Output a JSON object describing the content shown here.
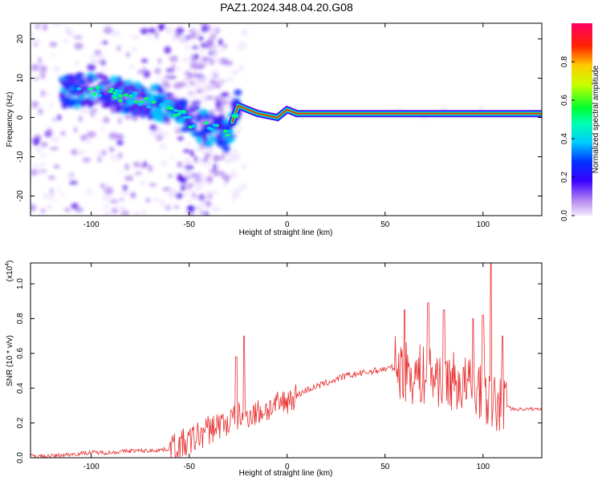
{
  "title": "PAZ1.2024.348.04.20.G08",
  "colors": {
    "snr_line": "#e83030",
    "frame": "#000000"
  },
  "chart_data": [
    {
      "type": "heatmap",
      "title": "PAZ1.2024.348.04.20.G08",
      "xlabel": "Height of straight line (km)",
      "ylabel": "Frequency (Hz)",
      "xlim": [
        -131,
        130
      ],
      "ylim": [
        -25,
        24
      ],
      "xticks": [
        -100,
        -50,
        0,
        50,
        100
      ],
      "yticks": [
        -20,
        -10,
        0,
        10,
        20
      ],
      "colorbar": {
        "label": "Normalized spectral amplitude",
        "range": [
          0.0,
          1.0
        ],
        "ticks": [
          0.0,
          0.2,
          0.4,
          0.6,
          0.8
        ],
        "colormap": "rainbow (white-violet-blue-cyan-green-yellow-red-magenta)"
      },
      "ridge": [
        {
          "x": -100,
          "freq": 7
        },
        {
          "x": -80,
          "freq": 5
        },
        {
          "x": -60,
          "freq": 3
        },
        {
          "x": -50,
          "freq": -1
        },
        {
          "x": -40,
          "freq": -3
        },
        {
          "x": -30,
          "freq": -4
        },
        {
          "x": -25,
          "freq": 3
        },
        {
          "x": -15,
          "freq": 1
        },
        {
          "x": -5,
          "freq": 0
        },
        {
          "x": 0,
          "freq": 2
        },
        {
          "x": 5,
          "freq": 1
        },
        {
          "x": 50,
          "freq": 1
        },
        {
          "x": 100,
          "freq": 1
        },
        {
          "x": 130,
          "freq": 1
        }
      ]
    },
    {
      "type": "line",
      "xlabel": "Height of straight line (km)",
      "ylabel": "SNR (10 * v/v)",
      "scale_label": "(x10",
      "scale_exponent": "4",
      "xlim": [
        -131,
        130
      ],
      "ylim": [
        0.0,
        1.12
      ],
      "xticks": [
        -100,
        -50,
        0,
        50,
        100
      ],
      "yticks": [
        0.0,
        0.2,
        0.4,
        0.6,
        0.8,
        1.0
      ],
      "series": [
        {
          "x": [
            -131,
            -120,
            -110,
            -100,
            -90,
            -80,
            -70,
            -60,
            -55,
            -50,
            -45,
            -40,
            -35,
            -30,
            -25,
            -20,
            -15,
            -10,
            -5,
            0,
            5,
            10,
            15,
            20,
            25,
            30,
            35,
            40,
            45,
            50,
            55,
            60,
            65,
            70,
            75,
            80,
            85,
            90,
            95,
            100,
            105,
            110,
            115,
            120,
            125,
            130
          ],
          "y": [
            0.01,
            0.01,
            0.02,
            0.03,
            0.03,
            0.04,
            0.04,
            0.05,
            0.07,
            0.09,
            0.13,
            0.16,
            0.19,
            0.2,
            0.24,
            0.25,
            0.26,
            0.28,
            0.3,
            0.33,
            0.36,
            0.39,
            0.41,
            0.43,
            0.45,
            0.47,
            0.48,
            0.49,
            0.5,
            0.51,
            0.52,
            0.5,
            0.48,
            0.47,
            0.47,
            0.46,
            0.44,
            0.42,
            0.4,
            0.4,
            0.3,
            0.32,
            0.28,
            0.28,
            0.28,
            0.28
          ],
          "spikes": [
            {
              "x": -26,
              "y": 0.58
            },
            {
              "x": -22,
              "y": 0.7
            },
            {
              "x": 60,
              "y": 0.85
            },
            {
              "x": 72,
              "y": 0.89
            },
            {
              "x": 80,
              "y": 0.85
            },
            {
              "x": 95,
              "y": 0.8
            },
            {
              "x": 100,
              "y": 0.82
            },
            {
              "x": 104,
              "y": 1.12
            },
            {
              "x": 110,
              "y": 0.7
            }
          ]
        }
      ]
    }
  ]
}
